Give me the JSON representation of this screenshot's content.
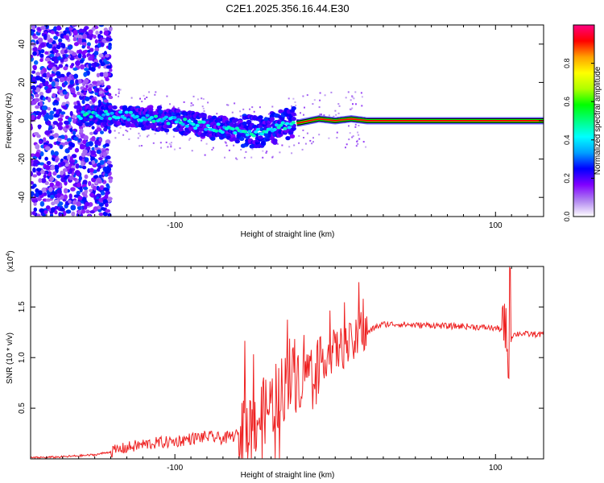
{
  "figure_title": "C2E1.2025.356.16.44.E30",
  "chart_data": [
    {
      "type": "heatmap",
      "title": "C2E1.2025.356.16.44.E30",
      "xlabel": "Height of straight line (km)",
      "ylabel": "Frequency (Hz)",
      "xlim": [
        -190,
        130
      ],
      "ylim": [
        -50,
        50
      ],
      "x_ticks": [
        -100,
        100
      ],
      "y_ticks": [
        -40,
        -20,
        0,
        20,
        40
      ],
      "colorbar": {
        "label": "Normalized spectral amplitude",
        "range": [
          0,
          1
        ],
        "ticks": [
          "0.0",
          "0.2",
          "0.4",
          "0.6",
          "0.8"
        ],
        "tick_values": [
          0.0,
          0.2,
          0.4,
          0.6,
          0.8
        ],
        "colors": [
          "#ffffff",
          "#b084f0",
          "#8000ff",
          "#0000ff",
          "#00a0ff",
          "#00ffff",
          "#00ff80",
          "#00ff00",
          "#b0ff00",
          "#ffff00",
          "#ffa000",
          "#ff0000",
          "#ff0080"
        ]
      },
      "ridge": [
        {
          "x": -190,
          "y": 2
        },
        {
          "x": -160,
          "y": 3
        },
        {
          "x": -140,
          "y": 3
        },
        {
          "x": -120,
          "y": 2
        },
        {
          "x": -100,
          "y": 0
        },
        {
          "x": -80,
          "y": -3
        },
        {
          "x": -60,
          "y": -5
        },
        {
          "x": -50,
          "y": -6
        },
        {
          "x": -40,
          "y": -4
        },
        {
          "x": -30,
          "y": -2
        },
        {
          "x": -22,
          "y": -1
        },
        {
          "x": -10,
          "y": 1
        },
        {
          "x": 0,
          "y": 0
        },
        {
          "x": 10,
          "y": 1
        },
        {
          "x": 20,
          "y": 0
        },
        {
          "x": 130,
          "y": 0
        }
      ]
    },
    {
      "type": "line",
      "title": "",
      "xlabel": "Height of straight line (km)",
      "ylabel": "SNR (10 * v/v)",
      "y_scale_label": "(x10",
      "y_scale_exponent": "4",
      "y_scale_suffix": ")",
      "xlim": [
        -190,
        130
      ],
      "ylim": [
        0,
        1.9
      ],
      "x_ticks": [
        -100,
        100
      ],
      "y_ticks": [
        0.5,
        1.0,
        1.5
      ],
      "y_tick_labels": [
        "0.5",
        "1.0",
        "1.5"
      ],
      "series": [
        {
          "name": "SNR",
          "color": "#ee2222",
          "x": [
            -190,
            -170,
            -150,
            -140,
            -130,
            -120,
            -110,
            -100,
            -90,
            -80,
            -70,
            -60,
            -55,
            -50,
            -45,
            -40,
            -35,
            -30,
            -25,
            -20,
            -15,
            -10,
            -5,
            0,
            5,
            10,
            15,
            20,
            25,
            30,
            40,
            50,
            60,
            70,
            80,
            90,
            100,
            105,
            108,
            110,
            115,
            120,
            130
          ],
          "y": [
            0.01,
            0.02,
            0.04,
            0.07,
            0.11,
            0.14,
            0.16,
            0.17,
            0.2,
            0.22,
            0.2,
            0.24,
            0.32,
            0.37,
            0.45,
            0.55,
            0.65,
            0.75,
            0.8,
            0.85,
            0.92,
            0.98,
            1.03,
            1.07,
            1.1,
            1.13,
            1.18,
            1.24,
            1.3,
            1.33,
            1.33,
            1.32,
            1.32,
            1.31,
            1.31,
            1.3,
            1.29,
            1.28,
            1.25,
            1.22,
            1.24,
            1.23,
            1.23
          ]
        }
      ]
    }
  ]
}
